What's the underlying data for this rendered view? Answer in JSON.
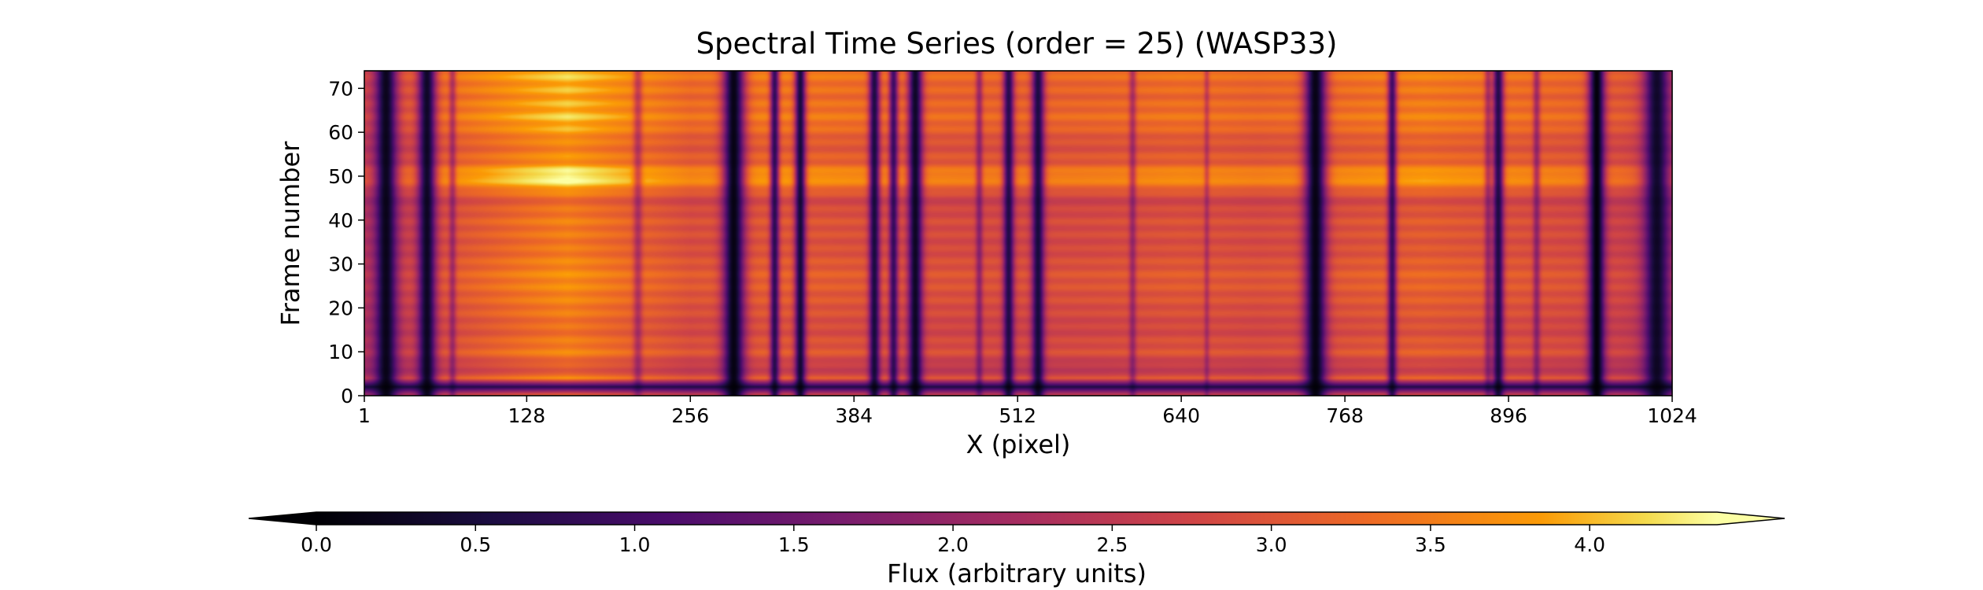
{
  "chart_data": {
    "type": "heatmap",
    "title": "Spectral Time Series (order = 25) (WASP33)",
    "xlabel": "X (pixel)",
    "ylabel": "Frame number",
    "xlim": [
      1,
      1024
    ],
    "ylim": [
      0,
      74
    ],
    "xticks": [
      1,
      128,
      256,
      384,
      512,
      640,
      768,
      896,
      1024
    ],
    "yticks": [
      0,
      10,
      20,
      30,
      40,
      50,
      60,
      70
    ],
    "colormap": "inferno",
    "colorbar": {
      "label": "Flux (arbitrary units)",
      "range": [
        0.0,
        4.4
      ],
      "ticks": [
        0.0,
        0.5,
        1.0,
        1.5,
        2.0,
        2.5,
        3.0,
        3.5,
        4.0
      ],
      "extend": "both",
      "orientation": "horizontal",
      "placement": "bottom"
    },
    "continuum_profile": [
      {
        "x": 1,
        "flux": 2.6
      },
      {
        "x": 60,
        "flux": 3.2
      },
      {
        "x": 128,
        "flux": 3.7
      },
      {
        "x": 160,
        "flux": 3.9
      },
      {
        "x": 200,
        "flux": 3.6
      },
      {
        "x": 256,
        "flux": 3.2
      },
      {
        "x": 320,
        "flux": 3.35
      },
      {
        "x": 384,
        "flux": 3.25
      },
      {
        "x": 450,
        "flux": 3.15
      },
      {
        "x": 512,
        "flux": 3.1
      },
      {
        "x": 580,
        "flux": 3.15
      },
      {
        "x": 640,
        "flux": 3.25
      },
      {
        "x": 700,
        "flux": 3.15
      },
      {
        "x": 768,
        "flux": 3.25
      },
      {
        "x": 830,
        "flux": 3.4
      },
      {
        "x": 896,
        "flux": 3.25
      },
      {
        "x": 960,
        "flux": 3.1
      },
      {
        "x": 1024,
        "flux": 2.7
      }
    ],
    "absorption_lines": [
      {
        "x": 18,
        "width": 12,
        "depth": 0.92
      },
      {
        "x": 50,
        "width": 10,
        "depth": 0.9
      },
      {
        "x": 70,
        "width": 4,
        "depth": 0.3
      },
      {
        "x": 215,
        "width": 5,
        "depth": 0.28
      },
      {
        "x": 290,
        "width": 12,
        "depth": 0.95
      },
      {
        "x": 322,
        "width": 5,
        "depth": 0.75
      },
      {
        "x": 342,
        "width": 6,
        "depth": 0.85
      },
      {
        "x": 400,
        "width": 6,
        "depth": 0.82
      },
      {
        "x": 415,
        "width": 5,
        "depth": 0.7
      },
      {
        "x": 432,
        "width": 8,
        "depth": 0.9
      },
      {
        "x": 482,
        "width": 4,
        "depth": 0.35
      },
      {
        "x": 505,
        "width": 6,
        "depth": 0.78
      },
      {
        "x": 528,
        "width": 7,
        "depth": 0.82
      },
      {
        "x": 602,
        "width": 4,
        "depth": 0.3
      },
      {
        "x": 660,
        "width": 3,
        "depth": 0.22
      },
      {
        "x": 745,
        "width": 12,
        "depth": 0.95
      },
      {
        "x": 805,
        "width": 5,
        "depth": 0.7
      },
      {
        "x": 880,
        "width": 4,
        "depth": 0.32
      },
      {
        "x": 888,
        "width": 6,
        "depth": 0.8
      },
      {
        "x": 918,
        "width": 4,
        "depth": 0.35
      },
      {
        "x": 965,
        "width": 9,
        "depth": 0.98
      },
      {
        "x": 1012,
        "width": 14,
        "depth": 0.88
      }
    ],
    "frame_modulation": [
      {
        "frame": 0,
        "factor": 0.9
      },
      {
        "frame": 2,
        "factor": 0.2
      },
      {
        "frame": 4,
        "factor": 0.98
      },
      {
        "frame": 6,
        "factor": 0.8
      },
      {
        "frame": 10,
        "factor": 0.97
      },
      {
        "frame": 15,
        "factor": 0.9
      },
      {
        "frame": 20,
        "factor": 0.95
      },
      {
        "frame": 27,
        "factor": 1.0
      },
      {
        "frame": 34,
        "factor": 0.93
      },
      {
        "frame": 40,
        "factor": 0.95
      },
      {
        "frame": 45,
        "factor": 0.88
      },
      {
        "frame": 47,
        "factor": 1.05
      },
      {
        "frame": 50,
        "factor": 1.22
      },
      {
        "frame": 53,
        "factor": 1.02
      },
      {
        "frame": 57,
        "factor": 0.96
      },
      {
        "frame": 63,
        "factor": 1.1
      },
      {
        "frame": 68,
        "factor": 1.05
      },
      {
        "frame": 74,
        "factor": 1.1
      }
    ]
  }
}
